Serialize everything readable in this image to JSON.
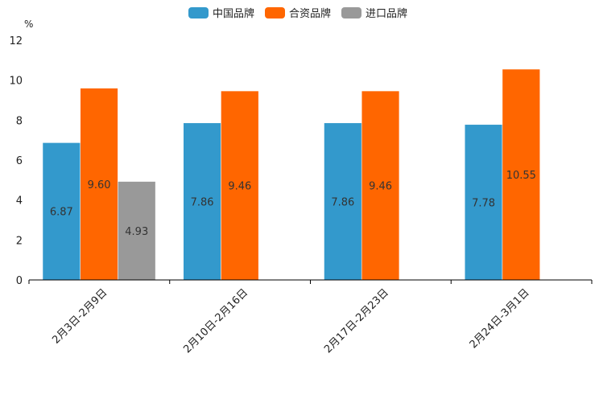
{
  "chart_data": {
    "type": "bar",
    "title": "",
    "xlabel": "",
    "ylabel": "%",
    "ylim": [
      0,
      12
    ],
    "yticks": [
      0,
      2,
      4,
      6,
      8,
      10,
      12
    ],
    "grid": false,
    "legend_position": "top-center",
    "categories": [
      "2月3日-2月9日",
      "2月10日-2月16日",
      "2月17日-2月23日",
      "2月24日-3月1日"
    ],
    "series": [
      {
        "name": "中国品牌",
        "color": "#3399cc",
        "values": [
          6.87,
          7.86,
          7.86,
          7.78
        ],
        "labels": [
          "6.87",
          "7.86",
          "7.86",
          "7.78"
        ]
      },
      {
        "name": "合资品牌",
        "color": "#ff6600",
        "values": [
          9.6,
          9.46,
          9.46,
          10.55
        ],
        "labels": [
          "9.60",
          "9.46",
          "9.46",
          "10.55"
        ]
      },
      {
        "name": "进口品牌",
        "color": "#999999",
        "values": [
          4.93,
          null,
          null,
          null
        ],
        "labels": [
          "4.93",
          null,
          null,
          null
        ]
      }
    ]
  }
}
